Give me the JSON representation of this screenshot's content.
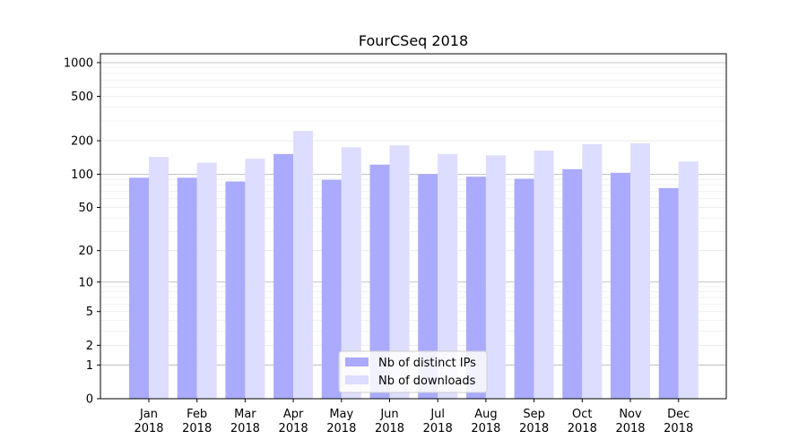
{
  "chart_data": {
    "type": "bar",
    "title": "FourCSeq 2018",
    "xlabel": "",
    "ylabel": "",
    "yscale": "log1p",
    "ylim": [
      0,
      1200
    ],
    "yticks": [
      0,
      1,
      2,
      5,
      10,
      20,
      50,
      100,
      200,
      500,
      1000
    ],
    "grid": true,
    "legend_position": "bottom-center",
    "categories": [
      "Jan\n2018",
      "Feb\n2018",
      "Mar\n2018",
      "Apr\n2018",
      "May\n2018",
      "Jun\n2018",
      "Jul\n2018",
      "Aug\n2018",
      "Sep\n2018",
      "Oct\n2018",
      "Nov\n2018",
      "Dec\n2018"
    ],
    "series": [
      {
        "name": "Nb of distinct IPs",
        "color": "#aaaaff",
        "values": [
          93,
          93,
          86,
          152,
          89,
          122,
          100,
          95,
          91,
          111,
          103,
          75
        ]
      },
      {
        "name": "Nb of downloads",
        "color": "#ddddff",
        "values": [
          143,
          127,
          138,
          245,
          175,
          182,
          152,
          148,
          163,
          186,
          190,
          130
        ]
      }
    ]
  }
}
